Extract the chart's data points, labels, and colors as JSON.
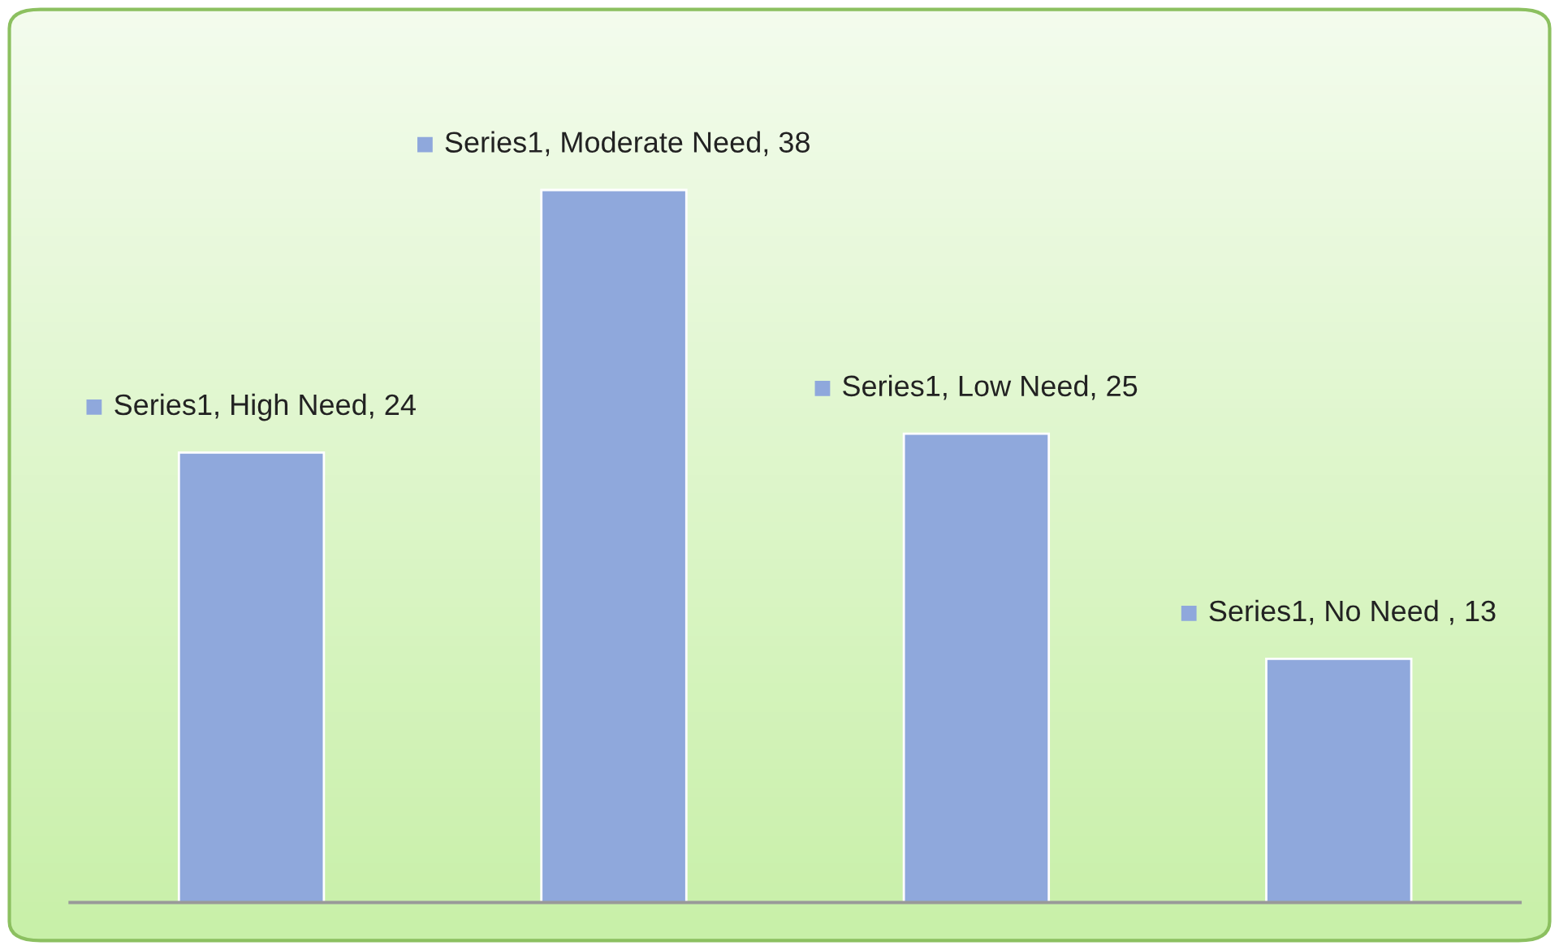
{
  "chart_data": {
    "type": "bar",
    "categories": [
      null,
      null,
      null,
      null
    ],
    "values": [
      24,
      38,
      25,
      13
    ],
    "color": "#8fa8dc",
    "value_labels": [
      "Series1, High Need, 24",
      "Series1, Moderate Need, 38",
      "Series1, Low Need, 25",
      "Series1, No Need , 13"
    ],
    "grid": false,
    "legend": false
  }
}
